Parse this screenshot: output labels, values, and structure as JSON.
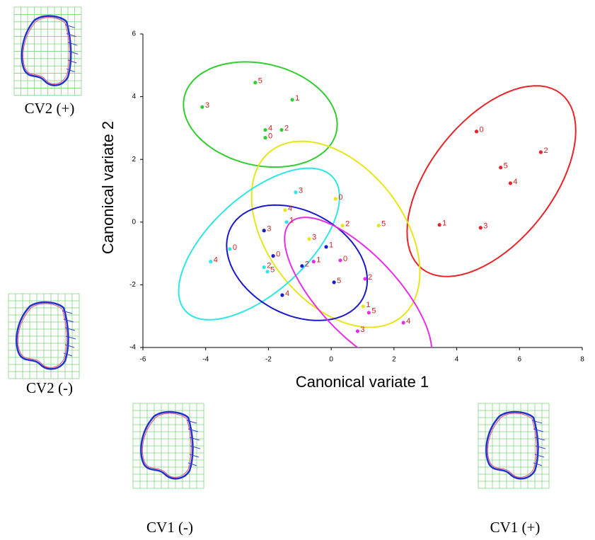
{
  "chart_data": {
    "type": "scatter",
    "xlabel": "Canonical variate 1",
    "ylabel": "Canonical variate 2",
    "xlim": [
      -6,
      8
    ],
    "ylim": [
      -4,
      6
    ],
    "xticks": [
      -6,
      -4,
      -2,
      0,
      2,
      4,
      6,
      8
    ],
    "yticks": [
      -4,
      -2,
      0,
      2,
      4,
      6
    ],
    "series": [
      {
        "color": "#e8232a",
        "labels": [
          "0",
          "2",
          "5",
          "4",
          "1",
          "3"
        ],
        "x": [
          4.63,
          6.68,
          5.4,
          5.71,
          3.45,
          4.76
        ],
        "y": [
          2.89,
          2.23,
          1.74,
          1.24,
          -0.09,
          -0.18
        ]
      },
      {
        "color": "#33cc33",
        "labels": [
          "5",
          "1",
          "3",
          "4",
          "2",
          "0"
        ],
        "x": [
          -2.42,
          -1.24,
          -4.11,
          -2.1,
          -1.58,
          -2.1
        ],
        "y": [
          4.45,
          3.9,
          3.67,
          2.94,
          2.94,
          2.69
        ]
      },
      {
        "color": "#e6e61a",
        "labels": [
          "0",
          "4",
          "2",
          "5",
          "3",
          "1"
        ],
        "x": [
          0.14,
          -1.47,
          0.36,
          1.51,
          -0.7,
          1.02
        ],
        "y": [
          0.74,
          0.38,
          -0.11,
          -0.11,
          -0.54,
          -2.69
        ]
      },
      {
        "color": "#2ee6e6",
        "labels": [
          "3",
          "1",
          "0",
          "4",
          "2",
          "5"
        ],
        "x": [
          -1.13,
          -1.42,
          -3.23,
          -3.84,
          -2.14,
          -2.03
        ],
        "y": [
          0.95,
          0,
          -0.86,
          -1.26,
          -1.44,
          -1.58
        ]
      },
      {
        "color": "#1a1acc",
        "labels": [
          "3",
          "1",
          "0",
          "2",
          "5",
          "4"
        ],
        "x": [
          -2.14,
          -0.16,
          -1.85,
          -0.93,
          0.09,
          -1.56
        ],
        "y": [
          -0.27,
          -0.79,
          -1.08,
          -1.4,
          -1.92,
          -2.33
        ]
      },
      {
        "color": "#e62ee6",
        "labels": [
          "0",
          "1",
          "2",
          "5",
          "4",
          "3"
        ],
        "x": [
          0.29,
          -0.56,
          1.08,
          1.2,
          2.3,
          0.84
        ],
        "y": [
          -1.22,
          -1.26,
          -1.81,
          -2.89,
          -3.21,
          -3.48
        ]
      }
    ]
  },
  "figures": [
    {
      "caption": "CV2 (+)"
    },
    {
      "caption": "CV2 (-)"
    },
    {
      "caption": "CV1 (-)"
    },
    {
      "caption": "CV1 (+)"
    }
  ]
}
